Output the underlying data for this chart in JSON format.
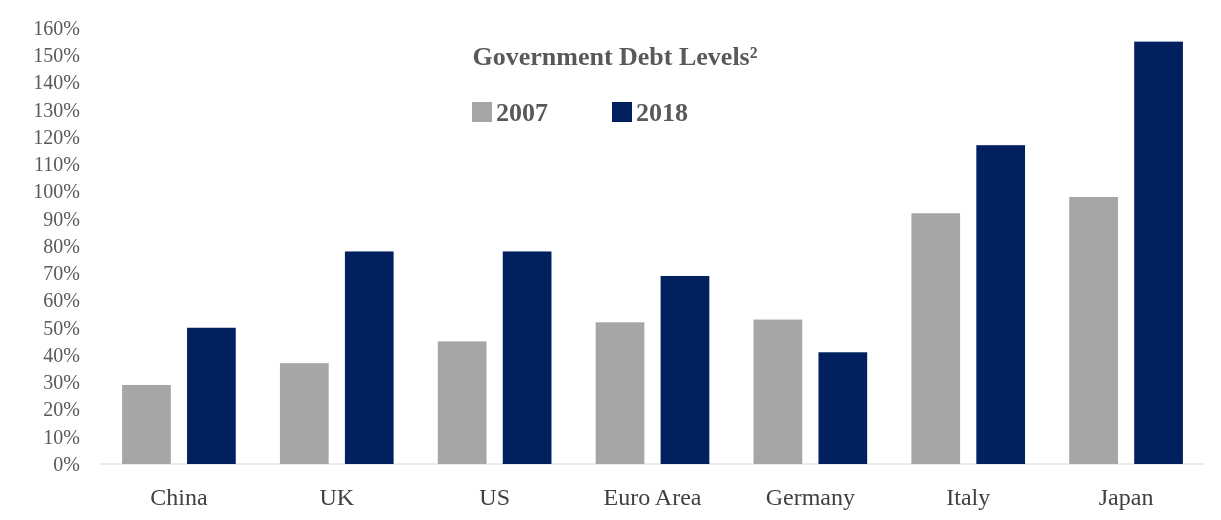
{
  "chart_data": {
    "type": "bar",
    "title": "Government Debt Levels²",
    "categories": [
      "China",
      "UK",
      "US",
      "Euro Area",
      "Germany",
      "Italy",
      "Japan"
    ],
    "series": [
      {
        "name": "2007",
        "color": "#a6a6a8",
        "values": [
          29,
          37,
          45,
          52,
          53,
          92,
          98
        ]
      },
      {
        "name": "2018",
        "color": "#002060",
        "values": [
          50,
          78,
          78,
          69,
          41,
          117,
          155
        ]
      }
    ],
    "ylim": [
      0,
      160
    ],
    "yticks": [
      {
        "value": 0,
        "label": "0%"
      },
      {
        "value": 10,
        "label": "10%"
      },
      {
        "value": 20,
        "label": "20%"
      },
      {
        "value": 30,
        "label": "30%"
      },
      {
        "value": 40,
        "label": "40%"
      },
      {
        "value": 50,
        "label": "50%"
      },
      {
        "value": 60,
        "label": "60%"
      },
      {
        "value": 70,
        "label": "70%"
      },
      {
        "value": 80,
        "label": "80%"
      },
      {
        "value": 90,
        "label": "90%"
      },
      {
        "value": 100,
        "label": "100%"
      },
      {
        "value": 110,
        "label": "110%"
      },
      {
        "value": 120,
        "label": "120%"
      },
      {
        "value": 130,
        "label": "130%"
      },
      {
        "value": 140,
        "label": "140%"
      },
      {
        "value": 150,
        "label": "150%"
      },
      {
        "value": 160,
        "label": "160%"
      }
    ],
    "grid": false,
    "legend": "top"
  }
}
